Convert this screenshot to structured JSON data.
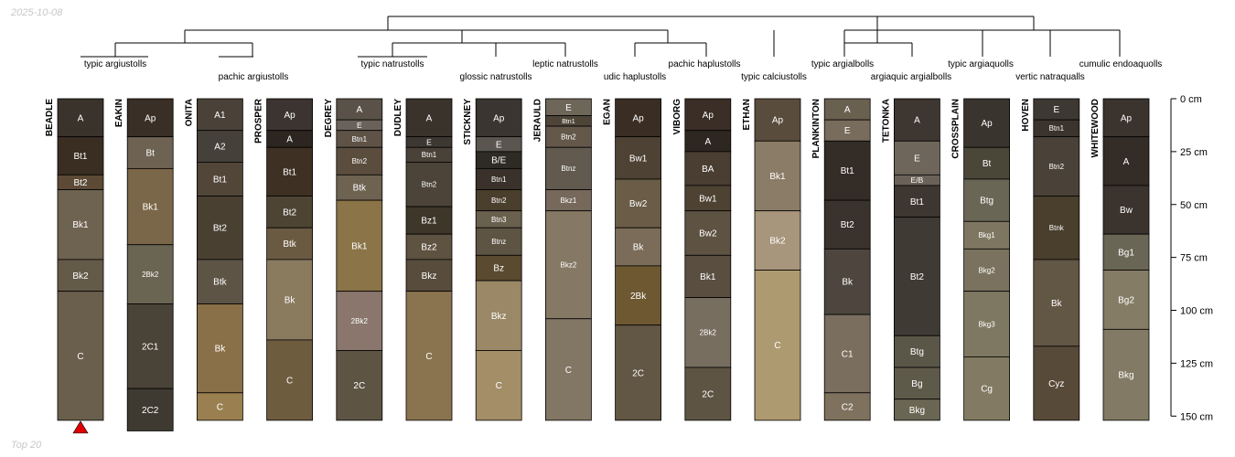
{
  "date": "2025-10-08",
  "footer": "Top 20",
  "chart_data": {
    "type": "soil-profile-sketch",
    "depth_axis": {
      "min": 0,
      "max": 150,
      "step": 25,
      "unit": "cm",
      "ticks": [
        "0 cm",
        "25 cm",
        "50 cm",
        "75 cm",
        "100 cm",
        "125 cm",
        "150 cm"
      ]
    },
    "taxa": [
      {
        "label": "typic argiustolls"
      },
      {
        "label": "pachic argiustolls"
      },
      {
        "label": "typic natrustolls"
      },
      {
        "label": "glossic natrustolls"
      },
      {
        "label": "leptic natrustolls"
      },
      {
        "label": "udic haplustolls"
      },
      {
        "label": "pachic haplustolls"
      },
      {
        "label": "typic calciustolls"
      },
      {
        "label": "typic argialbolls"
      },
      {
        "label": "argiaquic argialbolls"
      },
      {
        "label": "typic argiaquolls"
      },
      {
        "label": "vertic natraqualls"
      },
      {
        "label": "cumulic endoaquolls"
      }
    ],
    "profiles": [
      {
        "name": "BEADLE",
        "reference": true,
        "horizons": [
          {
            "name": "A",
            "top": 0,
            "bottom": 18,
            "color": "#3a332c"
          },
          {
            "name": "Bt1",
            "top": 18,
            "bottom": 36,
            "color": "#3a2d22"
          },
          {
            "name": "Bt2",
            "top": 36,
            "bottom": 43,
            "color": "#5c4a36"
          },
          {
            "name": "Bk1",
            "top": 43,
            "bottom": 76,
            "color": "#6e6250"
          },
          {
            "name": "Bk2",
            "top": 76,
            "bottom": 91,
            "color": "#645a48"
          },
          {
            "name": "C",
            "top": 91,
            "bottom": 152,
            "color": "#6a5f4c"
          }
        ]
      },
      {
        "name": "EAKIN",
        "horizons": [
          {
            "name": "Ap",
            "top": 0,
            "bottom": 18,
            "color": "#3a2f26"
          },
          {
            "name": "Bt",
            "top": 18,
            "bottom": 33,
            "color": "#6e6252"
          },
          {
            "name": "Bk1",
            "top": 33,
            "bottom": 69,
            "color": "#7a6648"
          },
          {
            "name": "2Bk2",
            "top": 69,
            "bottom": 97,
            "color": "#6a6452"
          },
          {
            "name": "2C1",
            "top": 97,
            "bottom": 137,
            "color": "#4a4438"
          },
          {
            "name": "2C2",
            "top": 137,
            "bottom": 157,
            "color": "#3e3a32"
          }
        ]
      },
      {
        "name": "ONITA",
        "horizons": [
          {
            "name": "A1",
            "top": 0,
            "bottom": 15,
            "color": "#4a4238"
          },
          {
            "name": "A2",
            "top": 15,
            "bottom": 30,
            "color": "#46403a"
          },
          {
            "name": "Bt1",
            "top": 30,
            "bottom": 46,
            "color": "#524638"
          },
          {
            "name": "Bt2",
            "top": 46,
            "bottom": 76,
            "color": "#4a4032"
          },
          {
            "name": "Btk",
            "top": 76,
            "bottom": 97,
            "color": "#5e5446"
          },
          {
            "name": "Bk",
            "top": 97,
            "bottom": 139,
            "color": "#8a7048"
          },
          {
            "name": "C",
            "top": 139,
            "bottom": 152,
            "color": "#9a8050"
          }
        ]
      },
      {
        "name": "PROSPER",
        "horizons": [
          {
            "name": "Ap",
            "top": 0,
            "bottom": 15,
            "color": "#3c3430"
          },
          {
            "name": "A",
            "top": 15,
            "bottom": 23,
            "color": "#2c2520"
          },
          {
            "name": "Bt1",
            "top": 23,
            "bottom": 46,
            "color": "#3e3022"
          },
          {
            "name": "Bt2",
            "top": 46,
            "bottom": 61,
            "color": "#4e4434"
          },
          {
            "name": "Btk",
            "top": 61,
            "bottom": 76,
            "color": "#6a5a42"
          },
          {
            "name": "Bk",
            "top": 76,
            "bottom": 114,
            "color": "#8a7a5e"
          },
          {
            "name": "C",
            "top": 114,
            "bottom": 152,
            "color": "#6e5c3e"
          }
        ]
      },
      {
        "name": "DEGREY",
        "horizons": [
          {
            "name": "A",
            "top": 0,
            "bottom": 10,
            "color": "#5a5248"
          },
          {
            "name": "E",
            "top": 10,
            "bottom": 15,
            "color": "#6a625a"
          },
          {
            "name": "Btn1",
            "top": 15,
            "bottom": 23,
            "color": "#5e5346"
          },
          {
            "name": "Btn2",
            "top": 23,
            "bottom": 36,
            "color": "#5a4d3e"
          },
          {
            "name": "Btk",
            "top": 36,
            "bottom": 48,
            "color": "#6e6250"
          },
          {
            "name": "Bk1",
            "top": 48,
            "bottom": 91,
            "color": "#8a7448"
          },
          {
            "name": "2Bk2",
            "top": 91,
            "bottom": 119,
            "color": "#8a766c"
          },
          {
            "name": "2C",
            "top": 119,
            "bottom": 152,
            "color": "#5e5444"
          }
        ]
      },
      {
        "name": "DUDLEY",
        "horizons": [
          {
            "name": "A",
            "top": 0,
            "bottom": 18,
            "color": "#3a332c"
          },
          {
            "name": "E",
            "top": 18,
            "bottom": 23,
            "color": "#3e3832"
          },
          {
            "name": "Btn1",
            "top": 23,
            "bottom": 30,
            "color": "#4a4238"
          },
          {
            "name": "Btn2",
            "top": 30,
            "bottom": 51,
            "color": "#4c4439"
          },
          {
            "name": "Bz1",
            "top": 51,
            "bottom": 64,
            "color": "#3e3628"
          },
          {
            "name": "Bz2",
            "top": 64,
            "bottom": 76,
            "color": "#5e5240"
          },
          {
            "name": "Bkz",
            "top": 76,
            "bottom": 91,
            "color": "#584c3c"
          },
          {
            "name": "C",
            "top": 91,
            "bottom": 152,
            "color": "#8a7450"
          }
        ]
      },
      {
        "name": "STICKNEY",
        "horizons": [
          {
            "name": "Ap",
            "top": 0,
            "bottom": 18,
            "color": "#3a3530"
          },
          {
            "name": "E",
            "top": 18,
            "bottom": 25,
            "color": "#5a554e"
          },
          {
            "name": "B/E",
            "top": 25,
            "bottom": 33,
            "color": "#2e2a24"
          },
          {
            "name": "Btn1",
            "top": 33,
            "bottom": 43,
            "color": "#3a322a"
          },
          {
            "name": "Btn2",
            "top": 43,
            "bottom": 53,
            "color": "#4a3e2c"
          },
          {
            "name": "Btn3",
            "top": 53,
            "bottom": 61,
            "color": "#6a604e"
          },
          {
            "name": "Btnz",
            "top": 61,
            "bottom": 74,
            "color": "#5e5444"
          },
          {
            "name": "Bz",
            "top": 74,
            "bottom": 86,
            "color": "#5a4a30"
          },
          {
            "name": "Bkz",
            "top": 86,
            "bottom": 119,
            "color": "#9a8866"
          },
          {
            "name": "C",
            "top": 119,
            "bottom": 152,
            "color": "#a48e68"
          }
        ]
      },
      {
        "name": "JERAULD",
        "horizons": [
          {
            "name": "E",
            "top": 0,
            "bottom": 8,
            "color": "#6e6658"
          },
          {
            "name": "Btn1",
            "top": 8,
            "bottom": 13,
            "color": "#4e4438"
          },
          {
            "name": "Btn2",
            "top": 13,
            "bottom": 23,
            "color": "#64584a"
          },
          {
            "name": "Btnz",
            "top": 23,
            "bottom": 43,
            "color": "#625a4e"
          },
          {
            "name": "Bkz1",
            "top": 43,
            "bottom": 53,
            "color": "#76685a"
          },
          {
            "name": "Bkz2",
            "top": 53,
            "bottom": 104,
            "color": "#857864"
          },
          {
            "name": "C",
            "top": 104,
            "bottom": 152,
            "color": "#827664"
          }
        ]
      },
      {
        "name": "EGAN",
        "horizons": [
          {
            "name": "Ap",
            "top": 0,
            "bottom": 18,
            "color": "#3a2e24"
          },
          {
            "name": "Bw1",
            "top": 18,
            "bottom": 38,
            "color": "#4e4234"
          },
          {
            "name": "Bw2",
            "top": 38,
            "bottom": 61,
            "color": "#6a5c46"
          },
          {
            "name": "Bk",
            "top": 61,
            "bottom": 79,
            "color": "#7a6c58"
          },
          {
            "name": "2Bk",
            "top": 79,
            "bottom": 107,
            "color": "#6e5832"
          },
          {
            "name": "2C",
            "top": 107,
            "bottom": 152,
            "color": "#625644"
          }
        ]
      },
      {
        "name": "VIBORG",
        "horizons": [
          {
            "name": "Ap",
            "top": 0,
            "bottom": 15,
            "color": "#3a2e26"
          },
          {
            "name": "A",
            "top": 15,
            "bottom": 25,
            "color": "#2e2620"
          },
          {
            "name": "BA",
            "top": 25,
            "bottom": 41,
            "color": "#4a3e32"
          },
          {
            "name": "Bw1",
            "top": 41,
            "bottom": 53,
            "color": "#4e4232"
          },
          {
            "name": "Bw2",
            "top": 53,
            "bottom": 74,
            "color": "#5e5242"
          },
          {
            "name": "Bk1",
            "top": 74,
            "bottom": 94,
            "color": "#5a4e40"
          },
          {
            "name": "2Bk2",
            "top": 94,
            "bottom": 127,
            "color": "#786e60"
          },
          {
            "name": "2C",
            "top": 127,
            "bottom": 152,
            "color": "#5e5444"
          }
        ]
      },
      {
        "name": "ETHAN",
        "horizons": [
          {
            "name": "Ap",
            "top": 0,
            "bottom": 20,
            "color": "#5a4c3c"
          },
          {
            "name": "Bk1",
            "top": 20,
            "bottom": 53,
            "color": "#8a7c66"
          },
          {
            "name": "Bk2",
            "top": 53,
            "bottom": 81,
            "color": "#a8967c"
          },
          {
            "name": "C",
            "top": 81,
            "bottom": 152,
            "color": "#ae9a70"
          }
        ]
      },
      {
        "name": "PLANKINTON",
        "horizons": [
          {
            "name": "A",
            "top": 0,
            "bottom": 10,
            "color": "#6a6050"
          },
          {
            "name": "E",
            "top": 10,
            "bottom": 20,
            "color": "#786c5c"
          },
          {
            "name": "Bt1",
            "top": 20,
            "bottom": 48,
            "color": "#342c26"
          },
          {
            "name": "Bt2",
            "top": 48,
            "bottom": 71,
            "color": "#3a322c"
          },
          {
            "name": "Bk",
            "top": 71,
            "bottom": 102,
            "color": "#4e463e"
          },
          {
            "name": "C1",
            "top": 102,
            "bottom": 139,
            "color": "#7a6e5e"
          },
          {
            "name": "C2",
            "top": 139,
            "bottom": 152,
            "color": "#7e725e"
          }
        ]
      },
      {
        "name": "TETONKA",
        "horizons": [
          {
            "name": "A",
            "top": 0,
            "bottom": 20,
            "color": "#3e3630"
          },
          {
            "name": "E",
            "top": 20,
            "bottom": 36,
            "color": "#6e665a"
          },
          {
            "name": "E/B",
            "top": 36,
            "bottom": 41,
            "color": "#6a6258"
          },
          {
            "name": "Bt1",
            "top": 41,
            "bottom": 56,
            "color": "#3e3630"
          },
          {
            "name": "Bt2",
            "top": 56,
            "bottom": 112,
            "color": "#403a34"
          },
          {
            "name": "Btg",
            "top": 112,
            "bottom": 127,
            "color": "#5a5648"
          },
          {
            "name": "Bg",
            "top": 127,
            "bottom": 142,
            "color": "#5e5a4a"
          },
          {
            "name": "Bkg",
            "top": 142,
            "bottom": 152,
            "color": "#6a6654"
          }
        ]
      },
      {
        "name": "CROSSPLAIN",
        "horizons": [
          {
            "name": "Ap",
            "top": 0,
            "bottom": 23,
            "color": "#3a342e"
          },
          {
            "name": "Bt",
            "top": 23,
            "bottom": 38,
            "color": "#4a4638"
          },
          {
            "name": "Btg",
            "top": 38,
            "bottom": 58,
            "color": "#6a6656"
          },
          {
            "name": "Bkg1",
            "top": 58,
            "bottom": 71,
            "color": "#7e7660"
          },
          {
            "name": "Bkg2",
            "top": 71,
            "bottom": 91,
            "color": "#7a725e"
          },
          {
            "name": "Bkg3",
            "top": 91,
            "bottom": 122,
            "color": "#7e7862"
          },
          {
            "name": "Cg",
            "top": 122,
            "bottom": 152,
            "color": "#827a62"
          }
        ]
      },
      {
        "name": "HOVEN",
        "horizons": [
          {
            "name": "E",
            "top": 0,
            "bottom": 10,
            "color": "#3e3832"
          },
          {
            "name": "Btn1",
            "top": 10,
            "bottom": 18,
            "color": "#3a342c"
          },
          {
            "name": "Btn2",
            "top": 18,
            "bottom": 46,
            "color": "#4a4238"
          },
          {
            "name": "Btnk",
            "top": 46,
            "bottom": 76,
            "color": "#4a3e2c"
          },
          {
            "name": "Bk",
            "top": 76,
            "bottom": 117,
            "color": "#625644"
          },
          {
            "name": "Cyz",
            "top": 117,
            "bottom": 152,
            "color": "#584a38"
          }
        ]
      },
      {
        "name": "WHITEWOOD",
        "horizons": [
          {
            "name": "Ap",
            "top": 0,
            "bottom": 18,
            "color": "#3a332e"
          },
          {
            "name": "A",
            "top": 18,
            "bottom": 41,
            "color": "#342c26"
          },
          {
            "name": "Bw",
            "top": 41,
            "bottom": 64,
            "color": "#3a332e"
          },
          {
            "name": "Bg1",
            "top": 64,
            "bottom": 81,
            "color": "#6a6656"
          },
          {
            "name": "Bg2",
            "top": 81,
            "bottom": 109,
            "color": "#857c66"
          },
          {
            "name": "Bkg",
            "top": 109,
            "bottom": 152,
            "color": "#827a64"
          }
        ]
      }
    ]
  }
}
